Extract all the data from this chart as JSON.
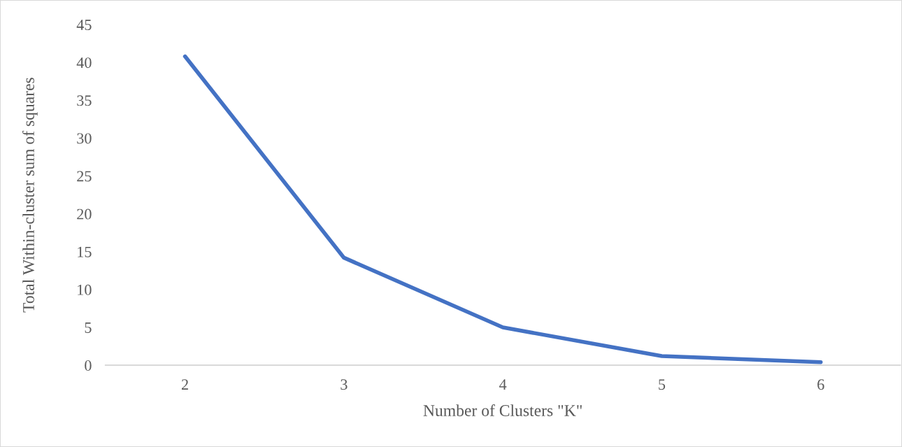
{
  "chart_data": {
    "type": "line",
    "xlabel": "Number of Clusters \"K\"",
    "ylabel": "Total Within-cluster sum of squares",
    "categories": [
      "2",
      "3",
      "4",
      "5",
      "6"
    ],
    "series": [
      {
        "color": "#4472c4",
        "values": [
          40.8,
          14.2,
          5.0,
          1.2,
          0.4
        ]
      }
    ],
    "ylim": [
      0,
      45
    ],
    "yticks": [
      0,
      5,
      10,
      15,
      20,
      25,
      30,
      35,
      40,
      45
    ],
    "grid": false,
    "legend": false,
    "marker": "none",
    "line_style": "solid"
  }
}
